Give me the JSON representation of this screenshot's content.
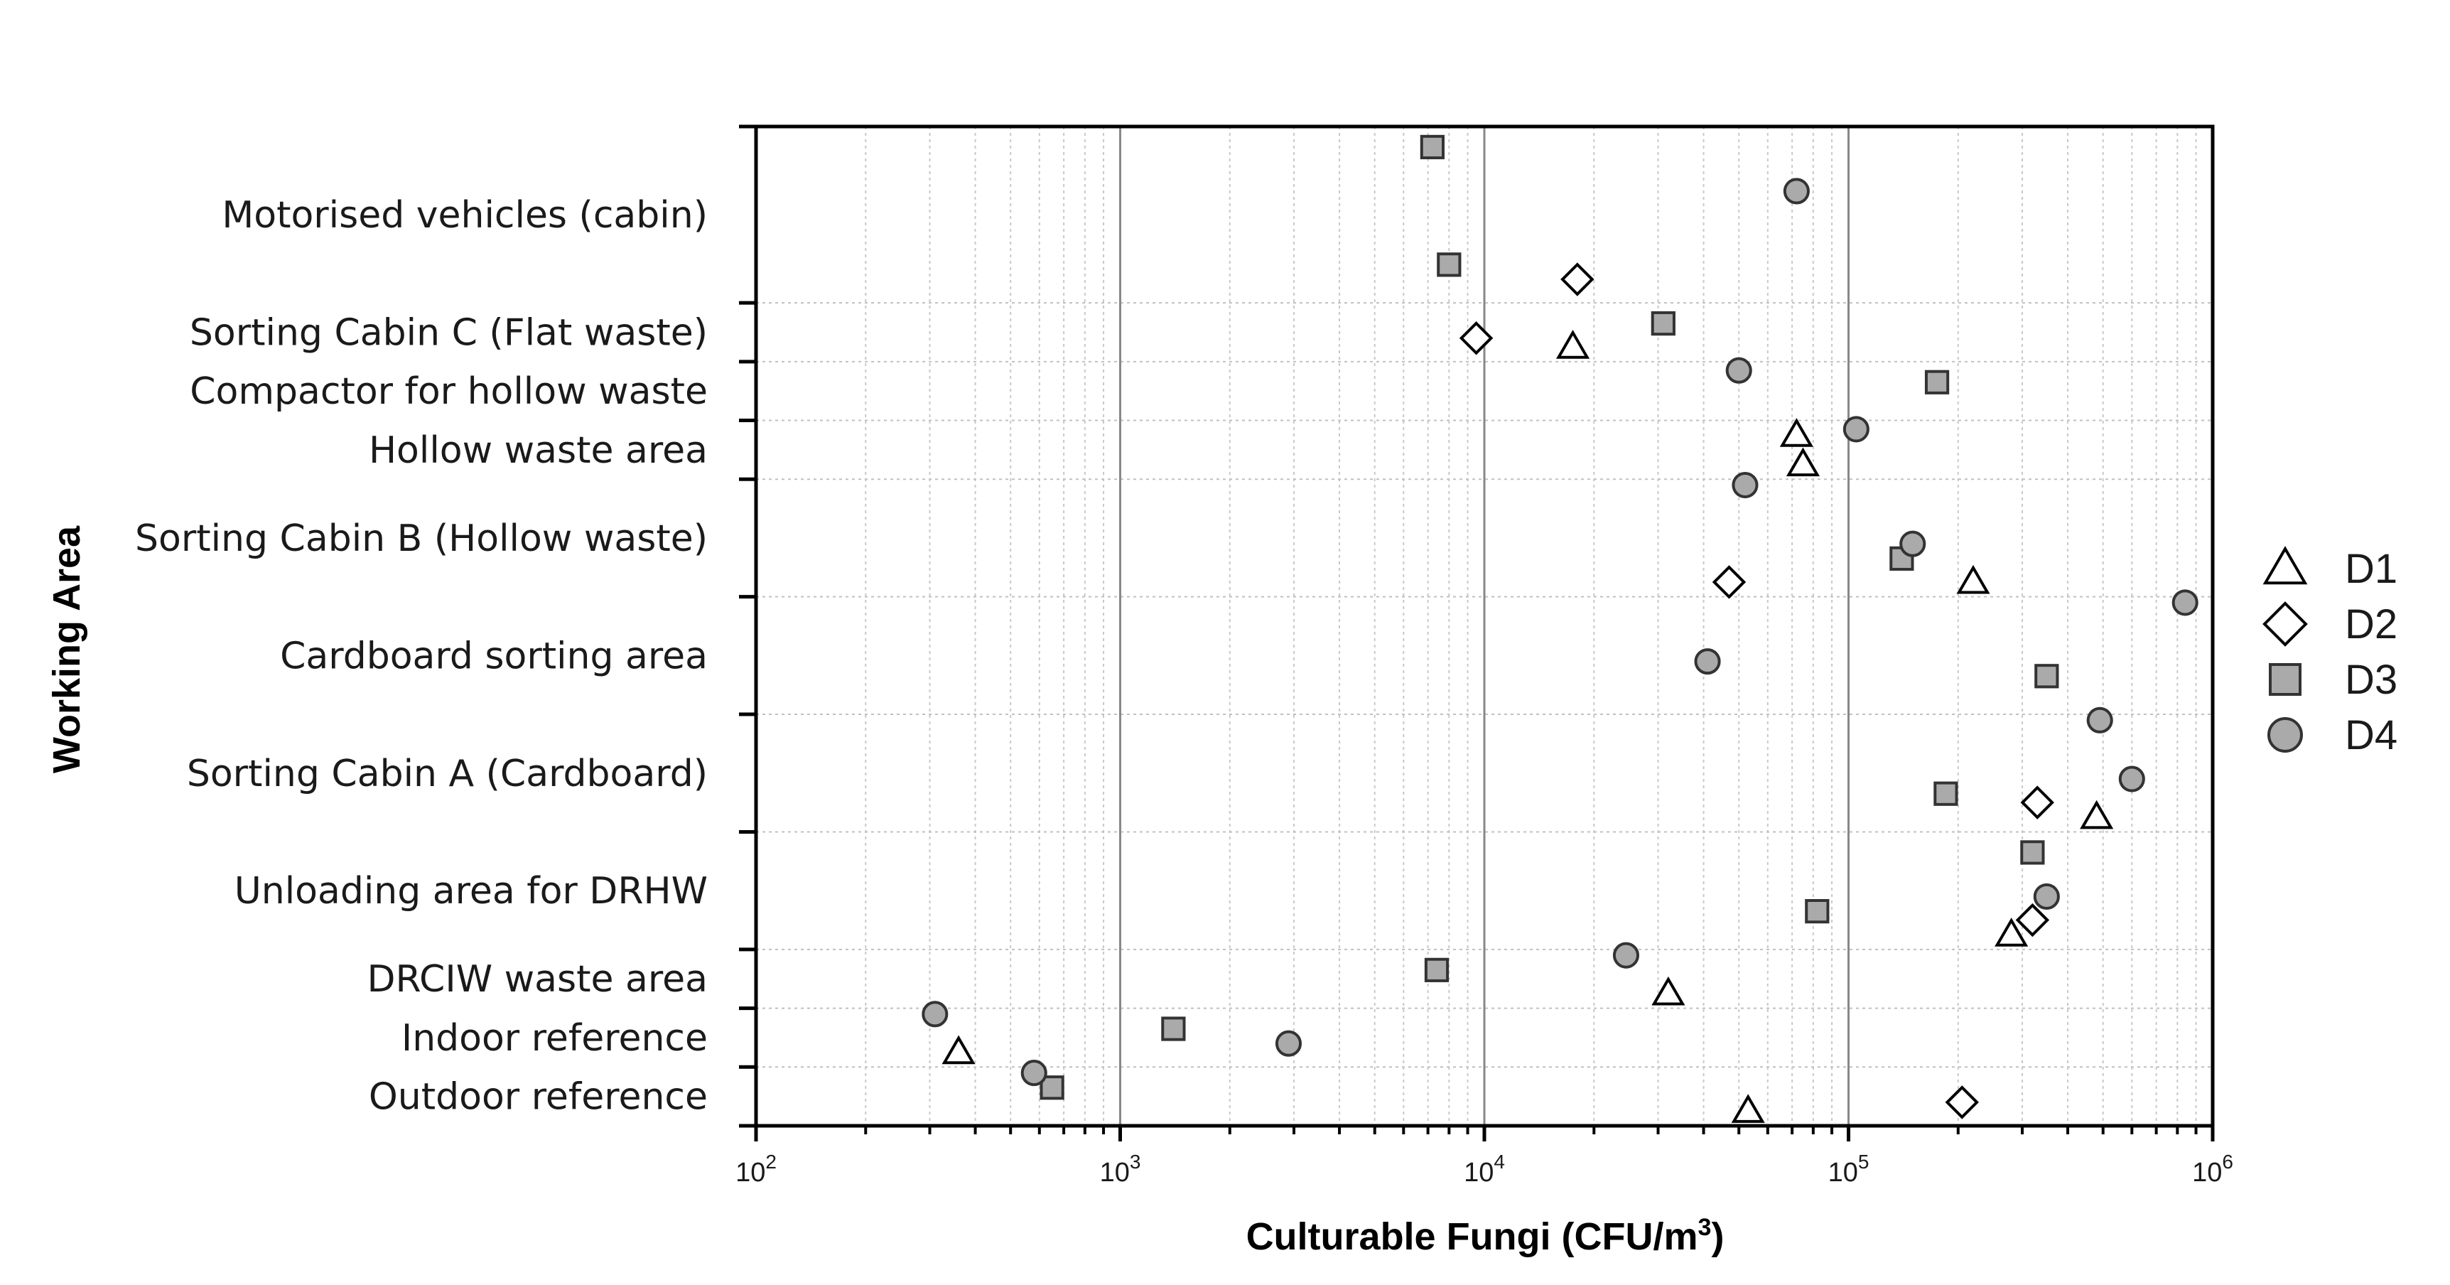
{
  "chart_data": {
    "type": "scatter",
    "title": "",
    "xlabel": "Culturable Fungi (CFU/m",
    "xlabel_sup": "3",
    "xlabel_suffix": ")",
    "ylabel": "Working Area",
    "x_scale": "log",
    "xlim": [
      100,
      1000000
    ],
    "x_ticks": [
      {
        "base": "10",
        "exp": "2"
      },
      {
        "base": "10",
        "exp": "3"
      },
      {
        "base": "10",
        "exp": "4"
      },
      {
        "base": "10",
        "exp": "5"
      },
      {
        "base": "10",
        "exp": "6"
      }
    ],
    "grid": true,
    "legend_position": "right",
    "categories": [
      {
        "label": "Motorised vehicles (cabin)",
        "range": [
          0,
          3
        ]
      },
      {
        "label": "Sorting Cabin C (Flat waste)",
        "range": [
          3,
          4
        ]
      },
      {
        "label": "Compactor for  hollow waste",
        "range": [
          4,
          5
        ]
      },
      {
        "label": "Hollow waste area",
        "range": [
          5,
          6
        ]
      },
      {
        "label": "Sorting Cabin B (Hollow waste)",
        "range": [
          6,
          8
        ]
      },
      {
        "label": "Cardboard sorting area",
        "range": [
          8,
          10
        ]
      },
      {
        "label": "Sorting Cabin A (Cardboard)",
        "range": [
          10,
          12
        ]
      },
      {
        "label": "Unloading area for DRHW",
        "range": [
          12,
          14
        ]
      },
      {
        "label": "DRCIW waste area",
        "range": [
          14,
          15
        ]
      },
      {
        "label": "Indoor reference",
        "range": [
          15,
          16
        ]
      },
      {
        "label": "Outdoor reference",
        "range": [
          16,
          17
        ]
      }
    ],
    "series": [
      {
        "name": "D1",
        "marker": "triangle",
        "color": "#ffffff",
        "stroke": "#000000",
        "points": [
          {
            "x": 17500,
            "y": 3.75
          },
          {
            "x": 72000,
            "y": 5.25
          },
          {
            "x": 75000,
            "y": 5.75
          },
          {
            "x": 220000,
            "y": 7.75
          },
          {
            "x": 480000,
            "y": 11.75
          },
          {
            "x": 280000,
            "y": 13.75
          },
          {
            "x": 32000,
            "y": 14.75
          },
          {
            "x": 360,
            "y": 15.75
          },
          {
            "x": 53000,
            "y": 16.75
          }
        ]
      },
      {
        "name": "D2",
        "marker": "diamond",
        "color": "#ffffff",
        "stroke": "#000000",
        "points": [
          {
            "x": 18000,
            "y": 2.6
          },
          {
            "x": 9500,
            "y": 3.6
          },
          {
            "x": 47000,
            "y": 7.75
          },
          {
            "x": 330000,
            "y": 11.5
          },
          {
            "x": 320000,
            "y": 13.5
          },
          {
            "x": 205000,
            "y": 16.6
          }
        ]
      },
      {
        "name": "D3",
        "marker": "square",
        "color": "#aaaaaa",
        "stroke": "#333333",
        "points": [
          {
            "x": 7200,
            "y": 0.35
          },
          {
            "x": 8000,
            "y": 2.35
          },
          {
            "x": 31000,
            "y": 3.35
          },
          {
            "x": 175000,
            "y": 4.35
          },
          {
            "x": 140000,
            "y": 7.35
          },
          {
            "x": 350000,
            "y": 9.35
          },
          {
            "x": 185000,
            "y": 11.35
          },
          {
            "x": 320000,
            "y": 12.35
          },
          {
            "x": 82000,
            "y": 13.35
          },
          {
            "x": 7400,
            "y": 14.35
          },
          {
            "x": 1400,
            "y": 15.35
          },
          {
            "x": 650,
            "y": 16.35
          }
        ]
      },
      {
        "name": "D4",
        "marker": "circle",
        "color": "#aaaaaa",
        "stroke": "#333333",
        "points": [
          {
            "x": 72000,
            "y": 1.1
          },
          {
            "x": 50000,
            "y": 4.15
          },
          {
            "x": 105000,
            "y": 5.15
          },
          {
            "x": 52000,
            "y": 6.1
          },
          {
            "x": 150000,
            "y": 7.1
          },
          {
            "x": 840000,
            "y": 8.1
          },
          {
            "x": 41000,
            "y": 9.1
          },
          {
            "x": 490000,
            "y": 10.1
          },
          {
            "x": 600000,
            "y": 11.1
          },
          {
            "x": 350000,
            "y": 13.1
          },
          {
            "x": 24500,
            "y": 14.1
          },
          {
            "x": 310,
            "y": 15.1
          },
          {
            "x": 2900,
            "y": 15.6
          },
          {
            "x": 580,
            "y": 16.1
          }
        ]
      }
    ]
  }
}
